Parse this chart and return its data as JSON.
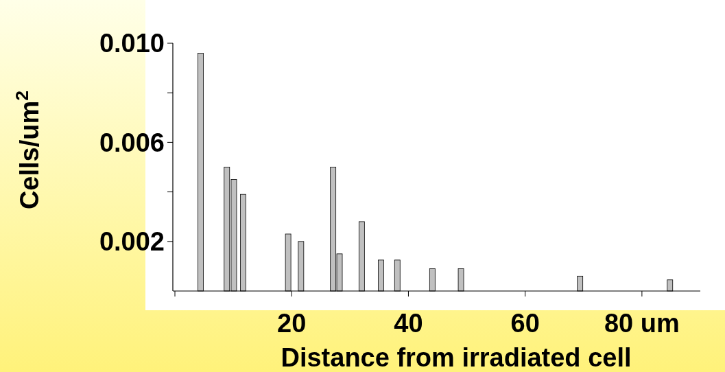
{
  "chart_data": {
    "type": "bar",
    "xlabel": "Distance from irradiated cell",
    "ylabel": "Cells/um$^{2}$",
    "x": [
      4.4,
      8.9,
      10.1,
      11.7,
      19.4,
      21.6,
      27.1,
      28.2,
      32.0,
      35.3,
      38.1,
      44.1,
      49.0,
      69.4,
      84.8
    ],
    "values": [
      0.0096,
      0.005,
      0.0045,
      0.0039,
      0.0023,
      0.002,
      0.005,
      0.0015,
      0.0028,
      0.00125,
      0.00125,
      0.0009,
      0.0009,
      0.0006,
      0.00045
    ],
    "color": "#c0c0c0",
    "xlim": [
      0,
      90
    ],
    "xticks": [
      {
        "value": 0,
        "label": null
      },
      20,
      40,
      60,
      {
        "value": 80,
        "label": "80 um"
      }
    ],
    "ylim": [
      0,
      0.01
    ],
    "yticks": [
      {
        "value": 0.002,
        "label": "0.002"
      },
      {
        "value": 0.004,
        "label": null
      },
      {
        "value": 0.006,
        "label": "0.006"
      },
      {
        "value": 0.008,
        "label": null
      },
      {
        "value": 0.01,
        "label": "0.010"
      }
    ],
    "grid": false
  }
}
